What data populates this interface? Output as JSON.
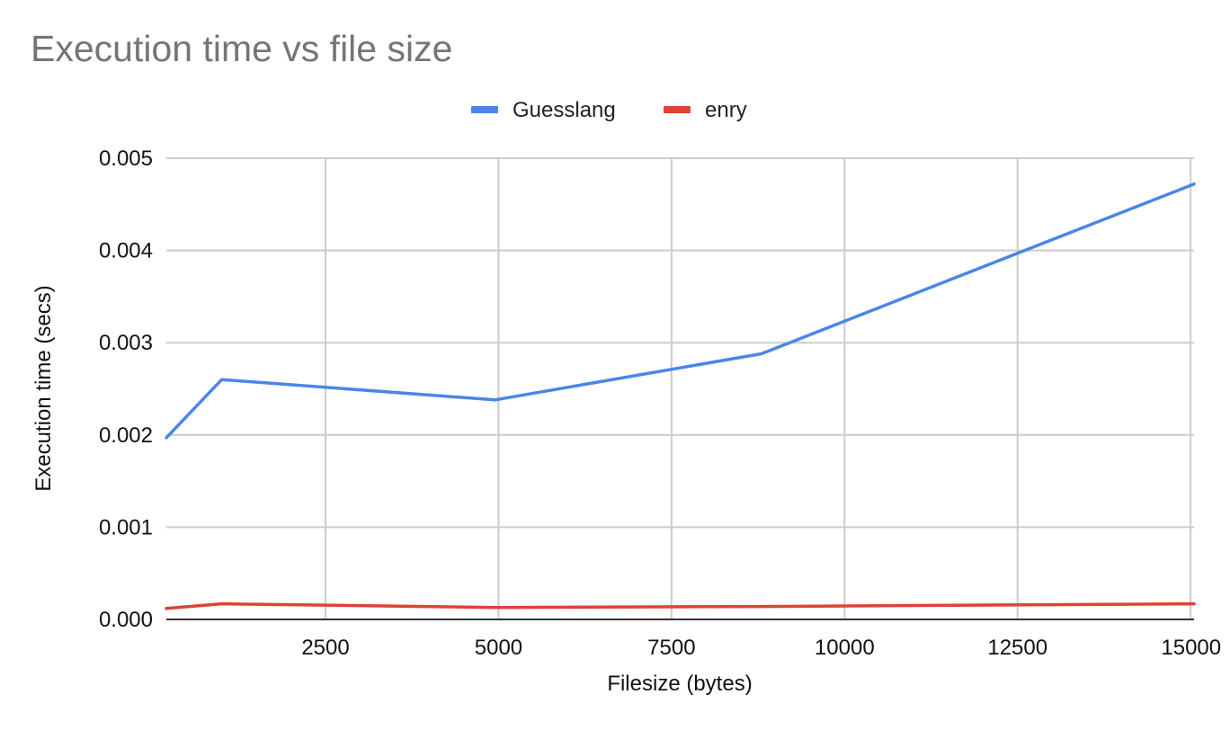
{
  "chart_data": {
    "type": "line",
    "title": "Execution time vs file size",
    "xlabel": "Filesize (bytes)",
    "ylabel": "Execution time (secs)",
    "xlim": [
      200,
      15050
    ],
    "ylim": [
      0,
      0.005
    ],
    "x_ticks": [
      "2500",
      "5000",
      "7500",
      "10000",
      "12500",
      "15000"
    ],
    "x_tick_values": [
      2500,
      5000,
      7500,
      10000,
      12500,
      15000
    ],
    "y_ticks": [
      "0.000",
      "0.001",
      "0.002",
      "0.003",
      "0.004",
      "0.005"
    ],
    "y_tick_values": [
      0,
      0.001,
      0.002,
      0.003,
      0.004,
      0.005
    ],
    "grid": true,
    "legend_position": "top",
    "series": [
      {
        "name": "Guesslang",
        "color": "#4a86e8",
        "x": [
          200,
          1000,
          4950,
          8800,
          15050
        ],
        "y": [
          0.00197,
          0.0026,
          0.00238,
          0.00288,
          0.00472
        ]
      },
      {
        "name": "enry",
        "color": "#db4437",
        "x": [
          200,
          1000,
          4950,
          8800,
          15050
        ],
        "y": [
          0.00012,
          0.00017,
          0.00013,
          0.00014,
          0.00017
        ]
      }
    ]
  }
}
